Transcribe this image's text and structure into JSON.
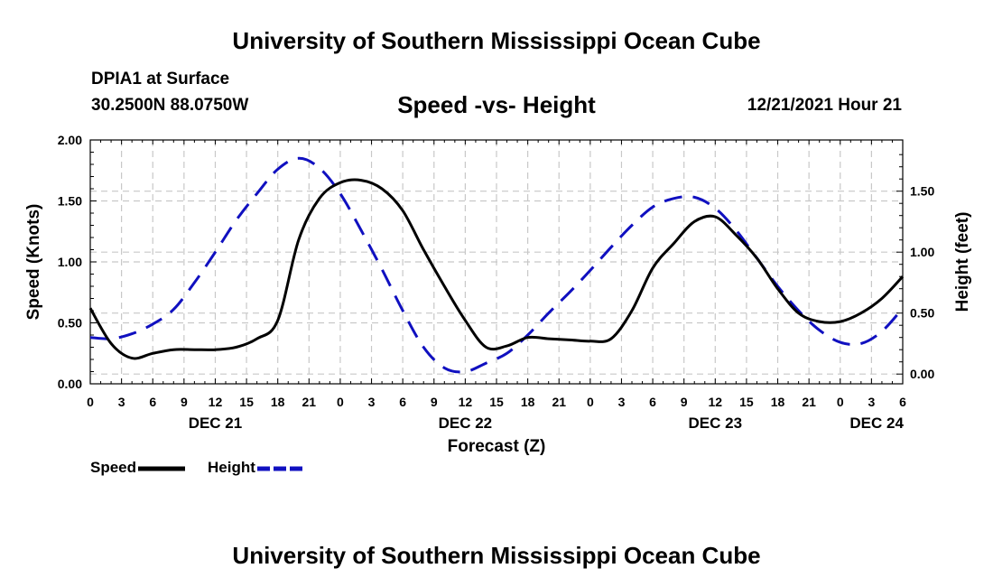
{
  "page": {
    "title": "University of Southern Mississippi Ocean Cube",
    "footer_title": "University of Southern Mississippi Ocean Cube",
    "station": "DPIA1 at Surface",
    "coords": "30.2500N  88.0750W",
    "chart_title": "Speed -vs- Height",
    "datetime": "12/21/2021 Hour 21"
  },
  "chart_data": {
    "type": "line",
    "title": "Speed -vs- Height",
    "xlabel": "Forecast (Z)",
    "ylabel": "Speed (Knots)",
    "y2label": "Height (feet)",
    "xlim": [
      0,
      78
    ],
    "ylim": [
      0,
      2.0
    ],
    "y2lim": [
      -0.08,
      1.92
    ],
    "grid": true,
    "x_ticks": [
      0,
      3,
      6,
      9,
      12,
      15,
      18,
      21,
      24,
      27,
      30,
      33,
      36,
      39,
      42,
      45,
      48,
      51,
      54,
      57,
      60,
      63,
      66,
      69,
      72,
      75,
      78
    ],
    "x_tick_labels": [
      "0",
      "3",
      "6",
      "9",
      "12",
      "15",
      "18",
      "21",
      "0",
      "3",
      "6",
      "9",
      "12",
      "15",
      "18",
      "21",
      "0",
      "3",
      "6",
      "9",
      "12",
      "15",
      "18",
      "21",
      "0",
      "3",
      "6"
    ],
    "y_ticks": [
      0.0,
      0.5,
      1.0,
      1.5,
      2.0
    ],
    "y_tick_labels": [
      "0.00",
      "0.50",
      "1.00",
      "1.50",
      "2.00"
    ],
    "y2_ticks": [
      0.0,
      0.5,
      1.0,
      1.5
    ],
    "y2_tick_labels": [
      "0.00",
      "0.50",
      "1.00",
      "1.50"
    ],
    "day_labels": [
      {
        "x": 12,
        "label": "DEC 21"
      },
      {
        "x": 36,
        "label": "DEC 22"
      },
      {
        "x": 60,
        "label": "DEC 23"
      },
      {
        "x": 75.5,
        "label": "DEC 24"
      }
    ],
    "legend": [
      {
        "name": "Speed",
        "color": "#000000",
        "dash": false
      },
      {
        "name": "Height",
        "color": "#1010c0",
        "dash": true
      }
    ],
    "series": [
      {
        "name": "Speed",
        "axis": "left",
        "color": "#000000",
        "x": [
          0,
          2,
          4,
          6,
          8,
          10,
          12,
          14,
          16,
          18,
          20,
          22,
          24,
          26,
          28,
          30,
          32,
          34,
          36,
          38,
          40,
          42,
          44,
          46,
          48,
          50,
          52,
          54,
          56,
          58,
          60,
          62,
          64,
          66,
          68,
          70,
          72,
          74,
          76,
          78
        ],
        "values": [
          0.62,
          0.33,
          0.21,
          0.25,
          0.28,
          0.28,
          0.28,
          0.3,
          0.37,
          0.52,
          1.18,
          1.52,
          1.65,
          1.67,
          1.6,
          1.42,
          1.1,
          0.8,
          0.52,
          0.3,
          0.31,
          0.38,
          0.37,
          0.36,
          0.35,
          0.37,
          0.6,
          0.95,
          1.15,
          1.33,
          1.37,
          1.22,
          1.03,
          0.78,
          0.58,
          0.51,
          0.51,
          0.58,
          0.7,
          0.88
        ]
      },
      {
        "name": "Height",
        "axis": "right",
        "color": "#1010c0",
        "x": [
          0,
          2,
          4,
          6,
          8,
          10,
          12,
          14,
          16,
          18,
          20,
          22,
          24,
          26,
          28,
          30,
          32,
          34,
          36,
          38,
          40,
          42,
          44,
          46,
          48,
          50,
          52,
          54,
          56,
          58,
          60,
          62,
          64,
          66,
          68,
          70,
          72,
          74,
          76,
          78
        ],
        "values": [
          0.3,
          0.29,
          0.33,
          0.41,
          0.53,
          0.75,
          1.0,
          1.26,
          1.48,
          1.68,
          1.77,
          1.69,
          1.48,
          1.18,
          0.86,
          0.52,
          0.22,
          0.05,
          0.02,
          0.09,
          0.17,
          0.32,
          0.5,
          0.67,
          0.85,
          1.04,
          1.22,
          1.37,
          1.44,
          1.45,
          1.36,
          1.18,
          0.95,
          0.72,
          0.52,
          0.36,
          0.26,
          0.25,
          0.35,
          0.54
        ]
      }
    ]
  }
}
